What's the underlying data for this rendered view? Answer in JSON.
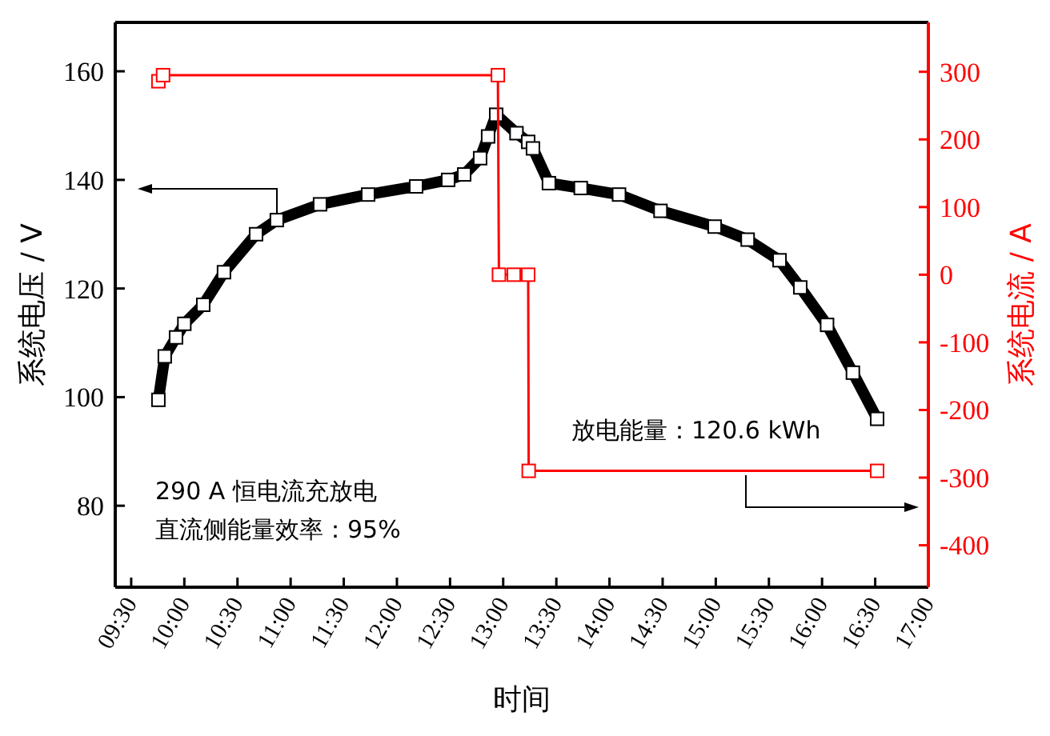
{
  "chart_data": {
    "type": "line",
    "xlabel": "时间",
    "ylabel": "系统电压 / V",
    "y2label": "系统电流 / A",
    "xlim": [
      9.35,
      17
    ],
    "xticks": [
      {
        "value": 9.5,
        "label": "09:30"
      },
      {
        "value": 10,
        "label": "10:00"
      },
      {
        "value": 10.5,
        "label": "10:30"
      },
      {
        "value": 11,
        "label": "11:00"
      },
      {
        "value": 11.5,
        "label": "11:30"
      },
      {
        "value": 12,
        "label": "12:00"
      },
      {
        "value": 12.5,
        "label": "12:30"
      },
      {
        "value": 13,
        "label": "13:00"
      },
      {
        "value": 13.5,
        "label": "13:30"
      },
      {
        "value": 14,
        "label": "14:00"
      },
      {
        "value": 14.5,
        "label": "14:30"
      },
      {
        "value": 15,
        "label": "15:00"
      },
      {
        "value": 15.5,
        "label": "15:30"
      },
      {
        "value": 16,
        "label": "16:00"
      },
      {
        "value": 16.5,
        "label": "16:30"
      },
      {
        "value": 17,
        "label": "17:00"
      }
    ],
    "ylim": [
      65,
      169
    ],
    "yticks": [
      80,
      100,
      120,
      140,
      160
    ],
    "y2lim": [
      -462,
      373
    ],
    "y2ticks": [
      -400,
      -300,
      -200,
      -100,
      0,
      100,
      200,
      300
    ],
    "marker": "square",
    "grid": false,
    "series": [
      {
        "color": "#000000",
        "x": [
          9.756,
          9.816,
          9.922,
          10.0,
          10.178,
          10.373,
          10.675,
          10.87,
          11.277,
          11.729,
          12.181,
          12.482,
          12.633,
          12.783,
          12.858,
          12.934,
          13.125,
          13.235,
          13.28,
          13.43,
          13.73,
          14.09,
          14.48,
          14.99,
          15.3,
          15.6,
          15.795,
          16.047,
          16.29,
          16.518
        ],
        "values": [
          99.5,
          107.5,
          111,
          113.5,
          117,
          123,
          130,
          132.6,
          135.5,
          137.3,
          138.8,
          140,
          141,
          144,
          148,
          152,
          148.6,
          147,
          145.8,
          139.4,
          138.5,
          137.3,
          134.3,
          131.4,
          129,
          125.2,
          120.2,
          113.3,
          104.5,
          96
        ]
      },
      {
        "color": "#ff0000",
        "axis": "y2",
        "x": [
          9.756,
          9.8,
          12.95,
          12.96,
          13.1,
          13.235,
          13.24,
          16.518
        ],
        "values": [
          286,
          295,
          295,
          0,
          0,
          0,
          -290,
          -290
        ]
      }
    ],
    "annotations": [
      "290 A 恒电流充放电",
      "直流侧能量效率：95%",
      "放电能量：120.6 kWh"
    ]
  }
}
